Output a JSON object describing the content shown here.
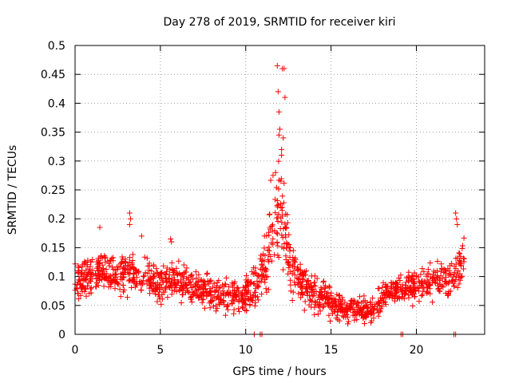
{
  "chart_data": {
    "type": "scatter",
    "title": "Day 278 of 2019, SRMTID for receiver kiri",
    "xlabel": "GPS time / hours",
    "ylabel": "SRMTID / TECUs",
    "xlim": [
      0,
      24
    ],
    "ylim": [
      0,
      0.5
    ],
    "x_ticks": [
      0,
      5,
      10,
      15,
      20
    ],
    "x_tick_labels": [
      "0",
      "5",
      "10",
      "15",
      "20"
    ],
    "y_ticks": [
      0,
      0.05,
      0.1,
      0.15,
      0.2,
      0.25,
      0.3,
      0.35,
      0.4,
      0.45,
      0.5
    ],
    "y_tick_labels": [
      "0",
      "0.05",
      "0.1",
      "0.15",
      "0.2",
      "0.25",
      "0.3",
      "0.35",
      "0.4",
      "0.45",
      "0.5"
    ],
    "grid": true,
    "marker": "+",
    "color": "#ff0000",
    "series": [
      {
        "name": "SRMTID",
        "x_start": 0.0,
        "x_end": 22.8,
        "trend": {
          "x": [
            0.0,
            1.0,
            1.5,
            2.5,
            3.2,
            4.0,
            5.0,
            5.5,
            6.5,
            7.5,
            8.5,
            9.5,
            10.3,
            10.9,
            11.3,
            11.7,
            12.0,
            12.3,
            12.7,
            13.2,
            14.0,
            15.0,
            16.0,
            17.0,
            17.5,
            18.0,
            19.0,
            20.0,
            21.0,
            22.0,
            22.8
          ],
          "y": [
            0.095,
            0.1,
            0.11,
            0.1,
            0.105,
            0.1,
            0.09,
            0.095,
            0.09,
            0.075,
            0.07,
            0.065,
            0.075,
            0.1,
            0.15,
            0.19,
            0.22,
            0.18,
            0.12,
            0.09,
            0.07,
            0.055,
            0.045,
            0.04,
            0.045,
            0.065,
            0.08,
            0.085,
            0.09,
            0.095,
            0.13
          ]
        },
        "spread": {
          "x": [
            0.0,
            5.0,
            10.0,
            11.0,
            11.7,
            12.2,
            13.0,
            15.0,
            17.0,
            20.0,
            22.8
          ],
          "y": [
            0.022,
            0.022,
            0.02,
            0.04,
            0.06,
            0.055,
            0.025,
            0.018,
            0.014,
            0.018,
            0.025
          ]
        },
        "peak_points": {
          "x": [
            11.85,
            11.9,
            11.95,
            12.0,
            12.1,
            12.15,
            12.25,
            12.3,
            11.95,
            12.2,
            12.1,
            11.6,
            11.75
          ],
          "y": [
            0.465,
            0.42,
            0.385,
            0.355,
            0.32,
            0.46,
            0.46,
            0.41,
            0.345,
            0.34,
            0.31,
            0.275,
            0.28
          ]
        },
        "spike_points": {
          "x": [
            1.45,
            3.2,
            3.25,
            3.2,
            3.9,
            5.6,
            5.65,
            22.3,
            22.35,
            22.4
          ],
          "y": [
            0.185,
            0.21,
            0.2,
            0.19,
            0.17,
            0.165,
            0.16,
            0.21,
            0.2,
            0.19
          ]
        },
        "zero_points": {
          "x": [
            10.5,
            10.85,
            10.95,
            19.1,
            19.2,
            22.2,
            22.3
          ],
          "y": [
            0,
            0,
            0,
            0,
            0,
            0,
            0
          ]
        }
      }
    ]
  }
}
